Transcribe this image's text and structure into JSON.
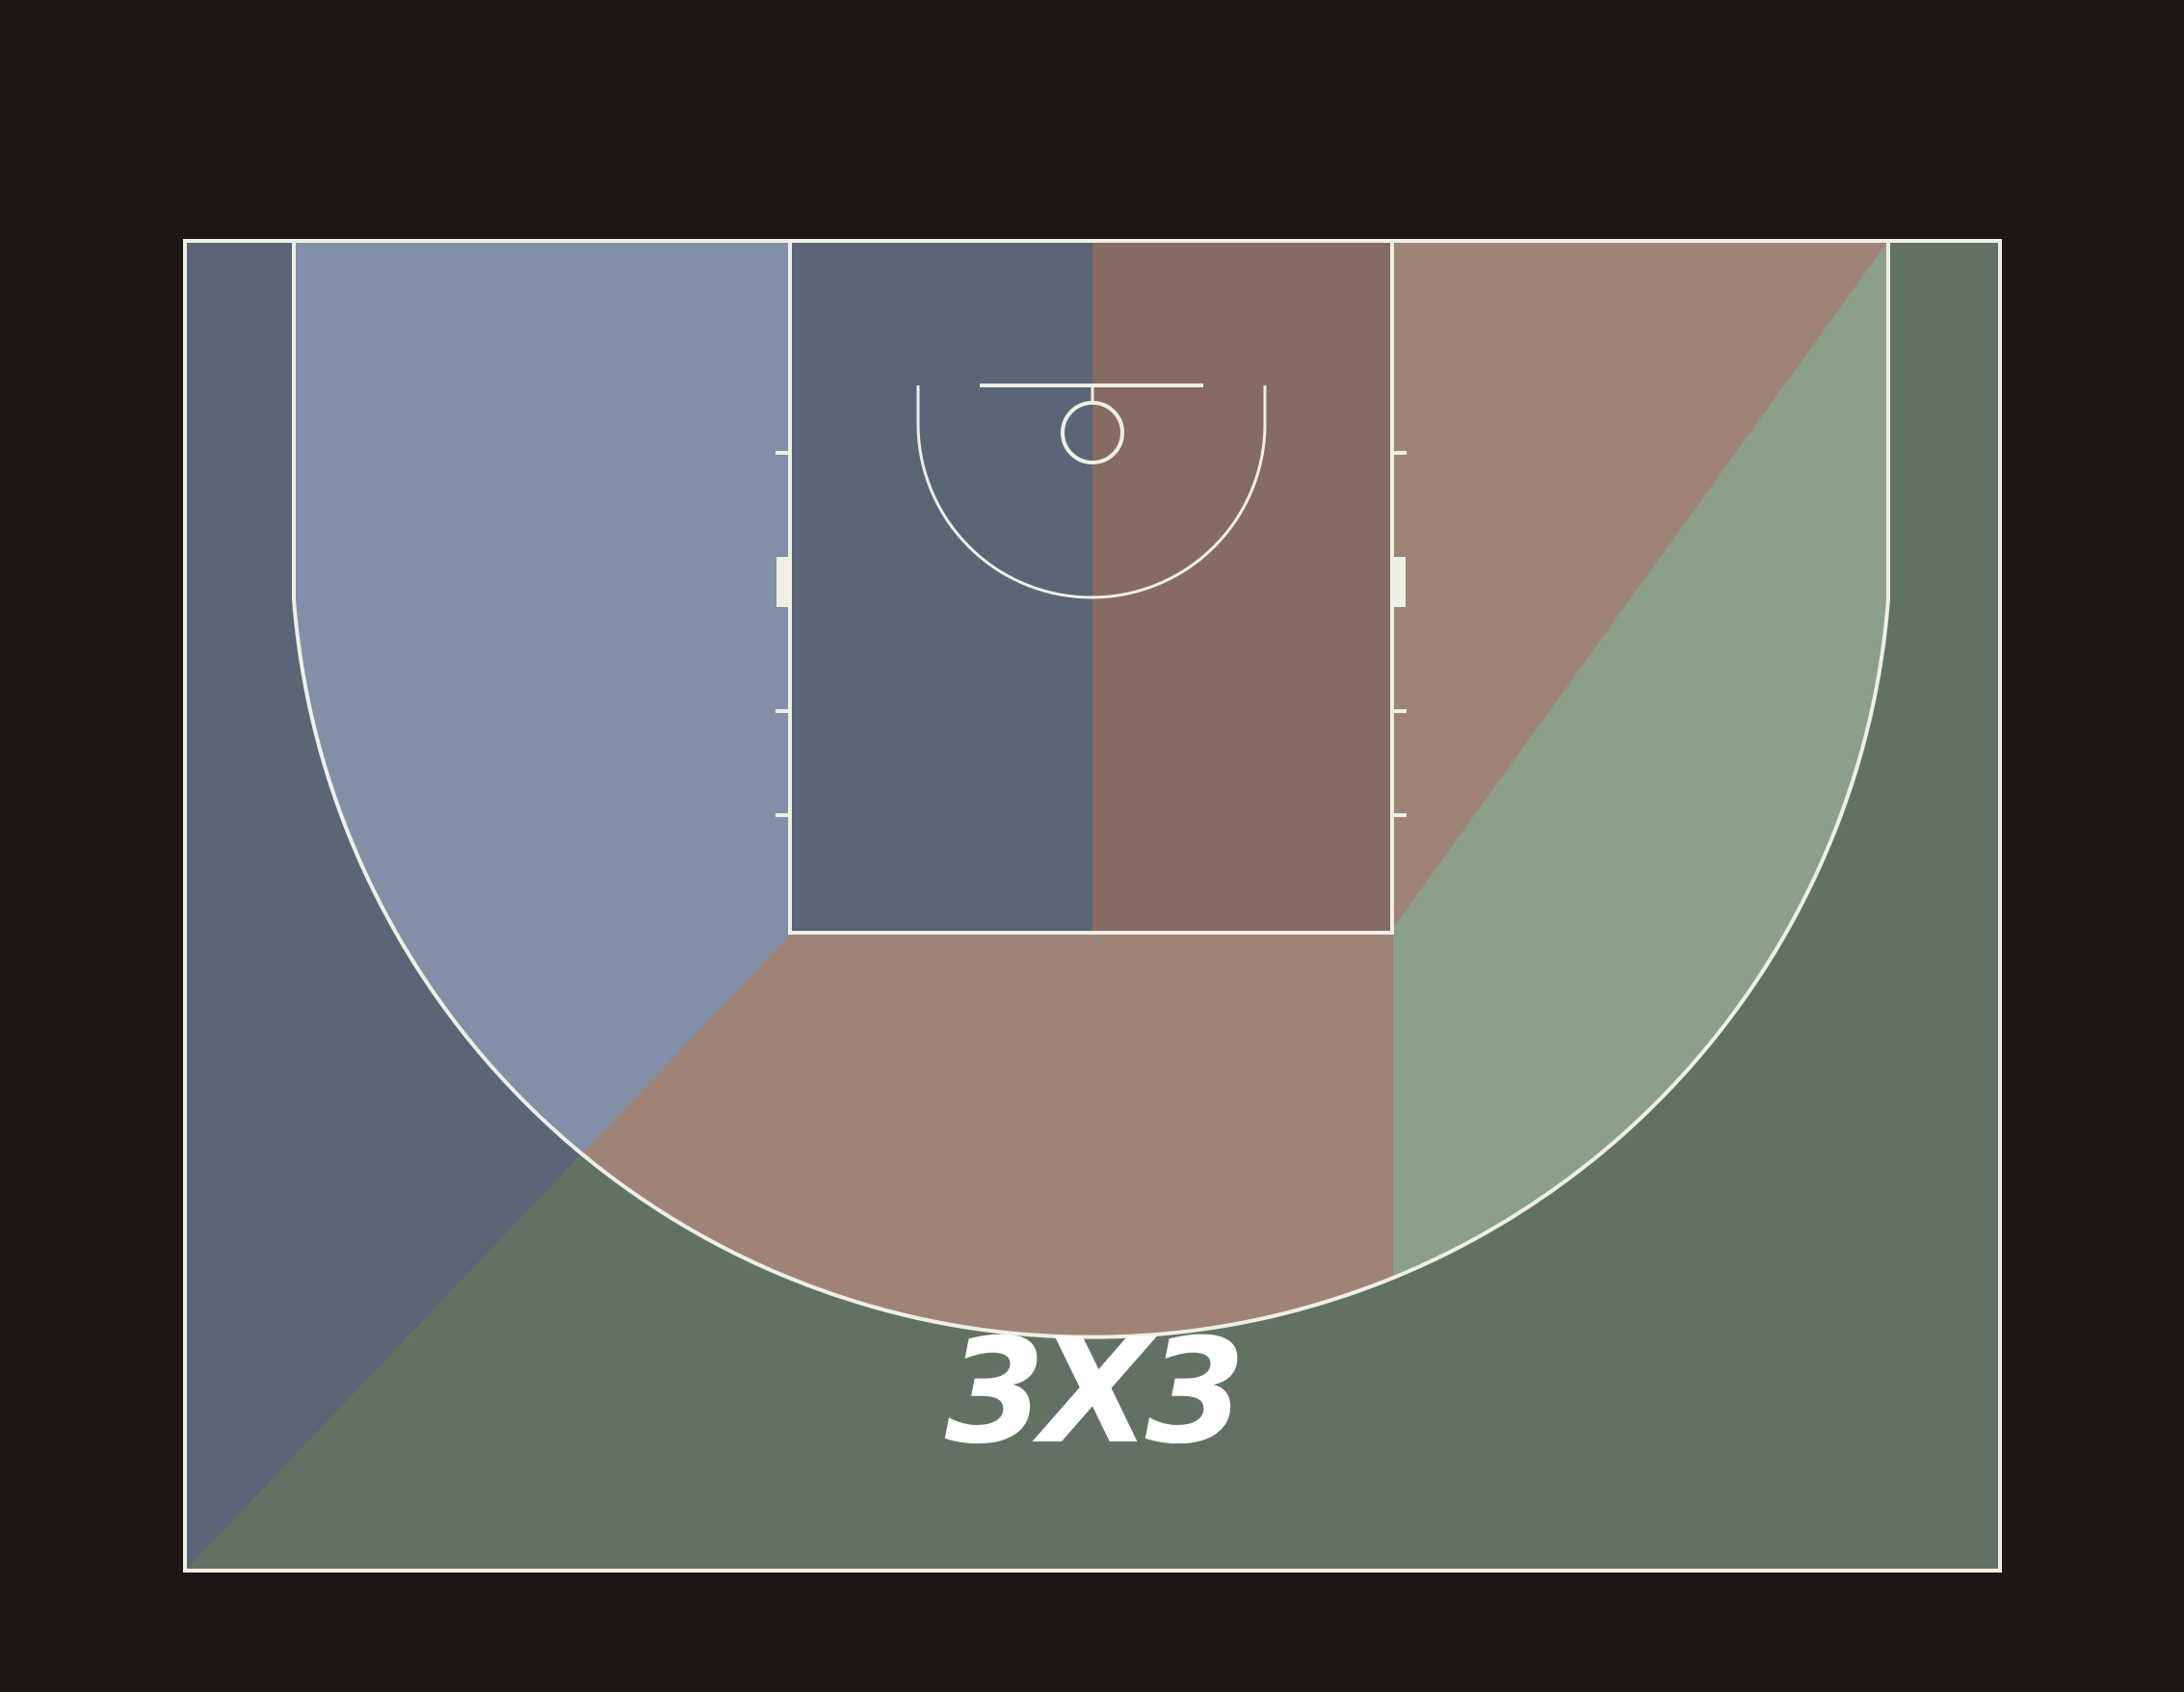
{
  "logo": {
    "text": "3X3"
  },
  "colors": {
    "background": "#1c1715",
    "court_line": "#efefe6",
    "zone_blue_outer": "#5a6576",
    "zone_blue_inner": "#838ea7",
    "zone_key_left": "#5a6576",
    "zone_key_right": "#856b62",
    "zone_salmon": "#a08377",
    "zone_green_inner": "#8b9f89",
    "zone_green_outer": "#627262",
    "logo": "#ffffff"
  },
  "zones": [
    {
      "id": "left-corner-outside-arc",
      "color_key": "zone_blue_outer"
    },
    {
      "id": "left-wing-inside-arc",
      "color_key": "zone_blue_inner"
    },
    {
      "id": "key-left-half",
      "color_key": "zone_key_left"
    },
    {
      "id": "key-right-half",
      "color_key": "zone_key_right"
    },
    {
      "id": "top-and-right-inside-arc",
      "color_key": "zone_salmon"
    },
    {
      "id": "right-wing-inside-arc",
      "color_key": "zone_green_inner"
    },
    {
      "id": "outside-arc-bottom-right",
      "color_key": "zone_green_outer"
    }
  ]
}
